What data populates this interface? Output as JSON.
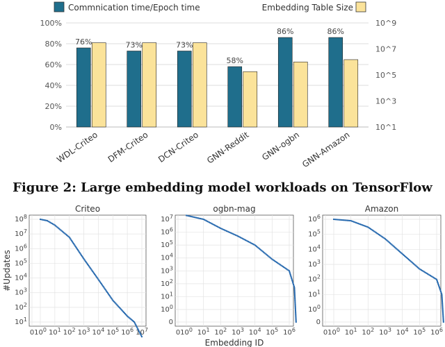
{
  "figure_caption": "Figure 2: Large embedding model workloads on TensorFlow",
  "colors": {
    "comm": "#1f6e8c",
    "emb": "#fbe39a",
    "points": "#2b6cb0"
  },
  "chart_data": [
    {
      "type": "bar",
      "categories": [
        "WDL-Criteo",
        "DFM-Criteo",
        "DCN-Criteo",
        "GNN-Reddit",
        "GNN-ogbn",
        "GNN-Amazon"
      ],
      "series": [
        {
          "name": "Commnication time/Epoch time",
          "axis": "left",
          "values": [
            76,
            73,
            73,
            58,
            86,
            86
          ]
        },
        {
          "name": "Embedding Table Size",
          "axis": "right",
          "values": [
            30000000.0,
            30000000.0,
            30000000.0,
            180000.0,
            1000000.0,
            1500000.0
          ]
        }
      ],
      "data_labels": [
        "76%",
        "73%",
        "73%",
        "58%",
        "86%",
        "86%"
      ],
      "left_ticks": [
        "0%",
        "20%",
        "40%",
        "60%",
        "80%",
        "100%"
      ],
      "right_ticks": [
        "10^1",
        "10^3",
        "10^5",
        "10^7",
        "10^9"
      ],
      "ylim_left": [
        0,
        100
      ],
      "ylim_right": [
        10,
        1000000000
      ],
      "right_scale": "log",
      "legend": "top"
    },
    {
      "type": "scatter",
      "title": "Criteo",
      "xscale": "log",
      "yscale": "log",
      "ylabel": "#Updates",
      "x_ticks": [
        "0",
        "10^0",
        "10^1",
        "10^2",
        "10^3",
        "10^4",
        "10^5",
        "10^6",
        "10^7"
      ],
      "y_ticks": [
        "10^1",
        "10^2",
        "10^3",
        "10^4",
        "10^5",
        "10^6",
        "10^7",
        "10^8"
      ],
      "points": [
        [
          1,
          100000000
        ],
        [
          3,
          80000000
        ],
        [
          10,
          40000000
        ],
        [
          100,
          6000000
        ],
        [
          1000,
          200000
        ],
        [
          10000,
          8000
        ],
        [
          100000,
          300
        ],
        [
          1000000,
          25
        ],
        [
          3000000,
          10
        ],
        [
          10000000,
          1
        ]
      ]
    },
    {
      "type": "scatter",
      "title": "ogbn-mag",
      "xscale": "log",
      "yscale": "log",
      "xlabel": "Embedding ID",
      "x_ticks": [
        "0",
        "10^0",
        "10^1",
        "10^2",
        "10^3",
        "10^4",
        "10^5",
        "10^6"
      ],
      "y_ticks": [
        "0",
        "10^0",
        "10^1",
        "10^2",
        "10^3",
        "10^4",
        "10^5",
        "10^6",
        "10^7"
      ],
      "points": [
        [
          1,
          20000000
        ],
        [
          10,
          10000000
        ],
        [
          100,
          2000000
        ],
        [
          1000,
          500000
        ],
        [
          10000,
          100000
        ],
        [
          100000,
          8000
        ],
        [
          1000000,
          1000
        ],
        [
          2000000,
          50
        ],
        [
          2500000,
          0
        ]
      ]
    },
    {
      "type": "scatter",
      "title": "Amazon",
      "xscale": "log",
      "yscale": "log",
      "x_ticks": [
        "0",
        "10^0",
        "10^1",
        "10^2",
        "10^3",
        "10^4",
        "10^5",
        "10^6"
      ],
      "y_ticks": [
        "0",
        "10^0",
        "10^1",
        "10^2",
        "10^3",
        "10^4",
        "10^5",
        "10^6"
      ],
      "points": [
        [
          1,
          1000000
        ],
        [
          10,
          800000
        ],
        [
          100,
          300000
        ],
        [
          1000,
          50000
        ],
        [
          10000,
          5000
        ],
        [
          100000,
          500
        ],
        [
          1000000,
          100
        ],
        [
          2000000,
          10
        ],
        [
          2500000,
          0
        ]
      ]
    }
  ]
}
